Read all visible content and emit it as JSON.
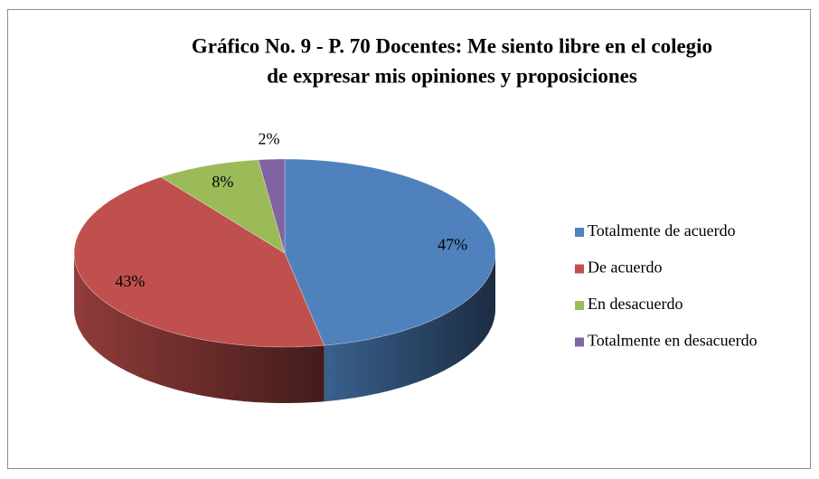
{
  "chart_data": {
    "type": "pie",
    "title": [
      "Gráfico No. 9 - P. 70 Docentes: Me siento libre en el colegio",
      "de expresar mis opiniones y proposiciones"
    ],
    "categories": [
      "Totalmente de acuerdo",
      "De acuerdo",
      "En desacuerdo",
      "Totalmente en desacuerdo"
    ],
    "values": [
      47,
      43,
      8,
      2
    ],
    "value_labels": [
      "47%",
      "43%",
      "8%",
      "2%"
    ],
    "colors": [
      "#4f81bd",
      "#c0504d",
      "#9bbb59",
      "#8064a2"
    ],
    "legend": "right"
  }
}
